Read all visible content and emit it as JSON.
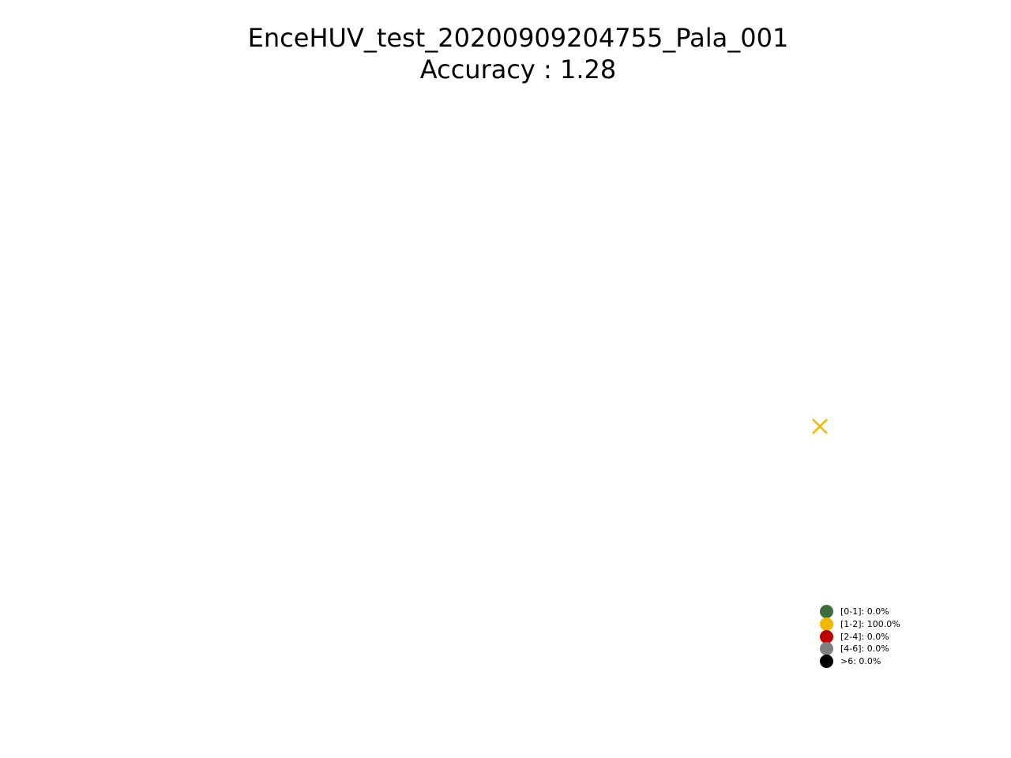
{
  "chart_data": {
    "type": "scatter",
    "title": "EnceHUV_test_20200909204755_Pala_001",
    "subtitle": "Accuracy : 1.28",
    "axes_visible": false,
    "grid": false,
    "points": [
      {
        "marker": "x",
        "color": "#f5b800",
        "category": "[1-2]"
      }
    ],
    "legend_position": "lower-right",
    "legend": [
      {
        "label": "[0-1]: 0.0%",
        "color": "#3d6e3a"
      },
      {
        "label": "[1-2]: 100.0%",
        "color": "#f5b800"
      },
      {
        "label": "[2-4]: 0.0%",
        "color": "#bf0000"
      },
      {
        "label": "[4-6]: 0.0%",
        "color": "#7f7f7f"
      },
      {
        "label": ">6: 0.0%",
        "color": "#000000"
      }
    ]
  }
}
